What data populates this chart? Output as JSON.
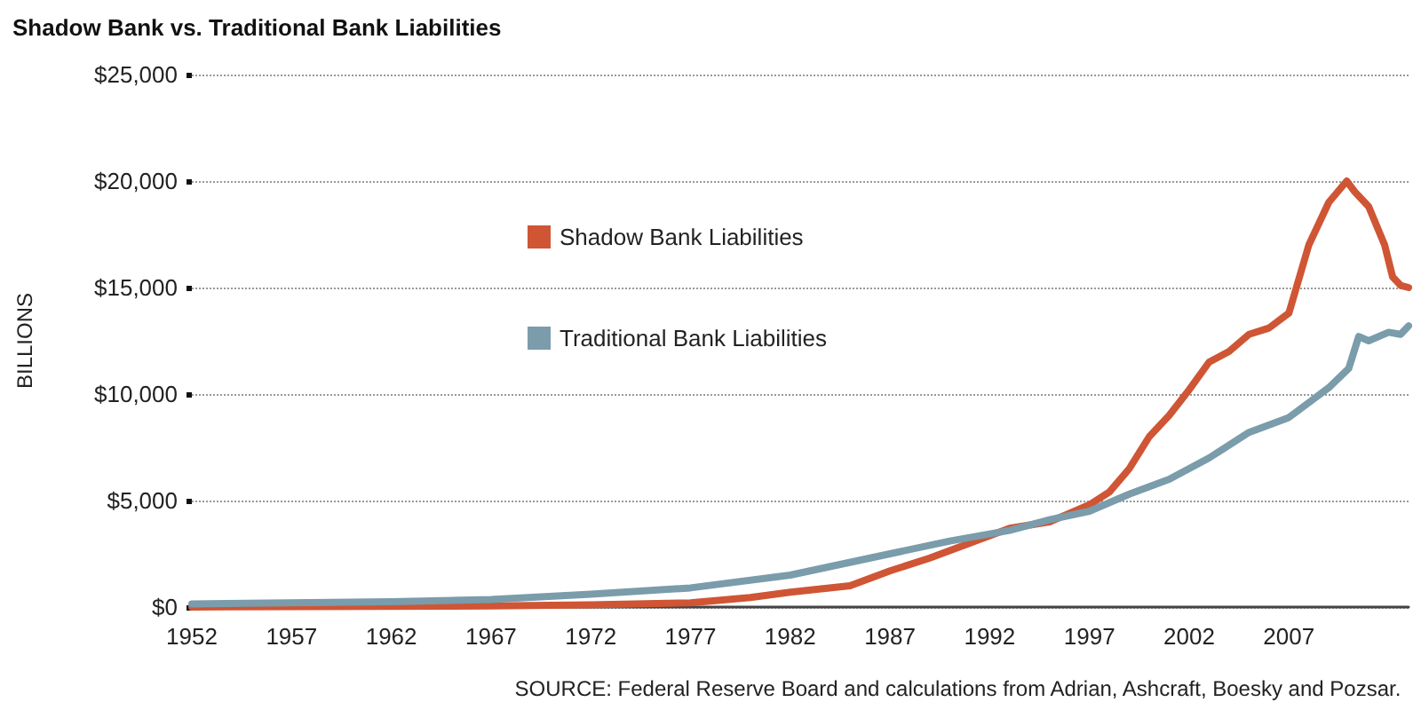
{
  "chart_data": {
    "type": "line",
    "title": "Shadow Bank vs. Traditional Bank Liabilities",
    "ylabel": "BILLIONS",
    "annotations": [
      "SOURCE: Federal Reserve Board and calculations from Adrian, Ashcraft, Boesky and Pozsar."
    ],
    "xlim": [
      1952,
      2013
    ],
    "xticks": [
      1952,
      1957,
      1962,
      1967,
      1972,
      1977,
      1982,
      1987,
      1992,
      1997,
      2002,
      2007
    ],
    "ylim": [
      0,
      25000
    ],
    "yticks": [
      {
        "value": 0,
        "label": "$0"
      },
      {
        "value": 5000,
        "label": "$5,000"
      },
      {
        "value": 10000,
        "label": "$10,000"
      },
      {
        "value": 15000,
        "label": "$15,000"
      },
      {
        "value": 20000,
        "label": "$20,000"
      },
      {
        "value": 25000,
        "label": "$25,000"
      }
    ],
    "grid": "y",
    "legend": "left",
    "marker": "none",
    "line_style": "solid",
    "series": [
      {
        "name": "Shadow Bank Liabilities",
        "color": "#cf5535",
        "x": [
          1952,
          1967,
          1972,
          1977,
          1980,
          1982,
          1985,
          1987,
          1989,
          1991,
          1993,
          1995,
          1996,
          1997,
          1998,
          1999,
          2000,
          2001,
          2002,
          2003,
          2004,
          2005,
          2006,
          2007,
          2008,
          2009,
          2009.9,
          2010.3,
          2011,
          2011.8,
          2012.2,
          2012.6,
          2013
        ],
        "values": [
          0,
          50,
          100,
          200,
          450,
          700,
          1000,
          1700,
          2300,
          3000,
          3700,
          4000,
          4400,
          4800,
          5400,
          6500,
          8000,
          9000,
          10200,
          11500,
          12000,
          12800,
          13100,
          13800,
          17000,
          19000,
          20000,
          19500,
          18800,
          17000,
          15500,
          15100,
          15000
        ]
      },
      {
        "name": "Traditional Bank Liabilities",
        "color": "#7a9cab",
        "x": [
          1952,
          1962,
          1967,
          1972,
          1977,
          1982,
          1987,
          1990,
          1993,
          1995,
          1997,
          1999,
          2001,
          2003,
          2005,
          2007,
          2008,
          2009,
          2010,
          2010.5,
          2011,
          2012,
          2012.6,
          2013
        ],
        "values": [
          150,
          250,
          350,
          600,
          900,
          1500,
          2500,
          3100,
          3600,
          4100,
          4500,
          5300,
          6000,
          7000,
          8200,
          8900,
          9600,
          10300,
          11200,
          12700,
          12500,
          12900,
          12800,
          13200
        ]
      }
    ]
  }
}
